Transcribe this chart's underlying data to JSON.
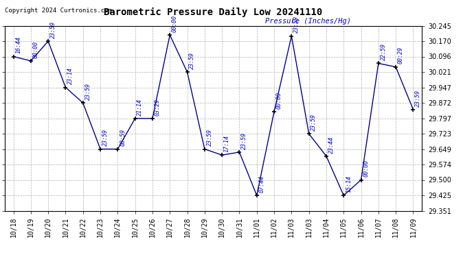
{
  "title": "Barometric Pressure Daily Low 20241110",
  "ylabel": "Pressure (Inches/Hg)",
  "copyright": "Copyright 2024 Curtronics.com",
  "line_color": "#00008B",
  "label_color": "#0000CC",
  "background_color": "#ffffff",
  "grid_color": "#b0b0b0",
  "ylim": [
    29.351,
    30.245
  ],
  "yticks": [
    29.351,
    29.425,
    29.5,
    29.574,
    29.649,
    29.723,
    29.797,
    29.872,
    29.947,
    30.021,
    30.096,
    30.17,
    30.245
  ],
  "points": [
    {
      "x": 0,
      "label": "10/18",
      "time": "16:44",
      "value": 30.096
    },
    {
      "x": 1,
      "label": "10/19",
      "time": "00:00",
      "value": 30.075
    },
    {
      "x": 2,
      "label": "10/20",
      "time": "23:59",
      "value": 30.17
    },
    {
      "x": 3,
      "label": "10/21",
      "time": "23:14",
      "value": 29.947
    },
    {
      "x": 4,
      "label": "10/22",
      "time": "23:59",
      "value": 29.872
    },
    {
      "x": 5,
      "label": "10/23",
      "time": "23:59",
      "value": 29.649
    },
    {
      "x": 6,
      "label": "10/24",
      "time": "00:59",
      "value": 29.649
    },
    {
      "x": 7,
      "label": "10/25",
      "time": "21:14",
      "value": 29.797
    },
    {
      "x": 8,
      "label": "10/26",
      "time": "03:29",
      "value": 29.797
    },
    {
      "x": 9,
      "label": "10/27",
      "time": "00:00",
      "value": 30.2
    },
    {
      "x": 10,
      "label": "10/28",
      "time": "23:59",
      "value": 30.021
    },
    {
      "x": 11,
      "label": "10/29",
      "time": "23:59",
      "value": 29.649
    },
    {
      "x": 12,
      "label": "10/30",
      "time": "17:14",
      "value": 29.62
    },
    {
      "x": 13,
      "label": "10/31",
      "time": "23:59",
      "value": 29.634
    },
    {
      "x": 14,
      "label": "11/01",
      "time": "07:44",
      "value": 29.425
    },
    {
      "x": 15,
      "label": "11/02",
      "time": "00:00",
      "value": 29.83
    },
    {
      "x": 16,
      "label": "11/03",
      "time": "23:59",
      "value": 30.195
    },
    {
      "x": 17,
      "label": "11/03",
      "time": "23:59",
      "value": 29.723
    },
    {
      "x": 18,
      "label": "11/04",
      "time": "23:44",
      "value": 29.615
    },
    {
      "x": 19,
      "label": "11/05",
      "time": "15:14",
      "value": 29.425
    },
    {
      "x": 20,
      "label": "11/06",
      "time": "00:00",
      "value": 29.5
    },
    {
      "x": 21,
      "label": "11/07",
      "time": "22:59",
      "value": 30.063
    },
    {
      "x": 22,
      "label": "11/08",
      "time": "00:29",
      "value": 30.046
    },
    {
      "x": 23,
      "label": "11/09",
      "time": "23:59",
      "value": 29.84
    }
  ],
  "xtick_labels": [
    "10/18",
    "10/19",
    "10/20",
    "10/21",
    "10/22",
    "10/23",
    "10/24",
    "10/25",
    "10/26",
    "10/27",
    "10/28",
    "10/29",
    "10/30",
    "10/31",
    "11/01",
    "11/02",
    "11/03",
    "11/03",
    "11/04",
    "11/05",
    "11/06",
    "11/07",
    "11/08",
    "11/09"
  ]
}
